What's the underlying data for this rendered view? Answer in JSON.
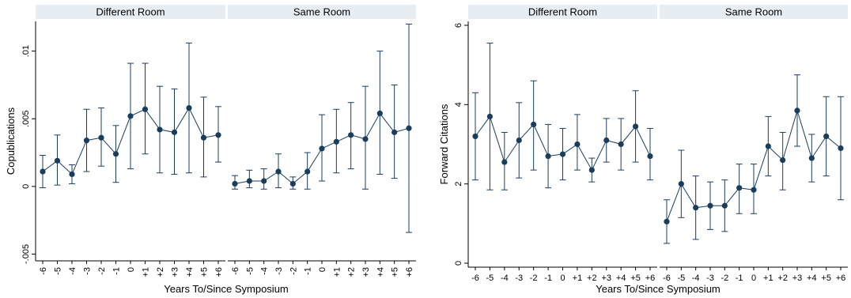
{
  "chart_data": [
    {
      "type": "line",
      "ylabel": "Copublications",
      "xlabel": "Years To/Since Symposium",
      "x": [
        "-6",
        "-5",
        "-4",
        "-3",
        "-2",
        "-1",
        "0",
        "+1",
        "+2",
        "+3",
        "+4",
        "+5",
        "+6"
      ],
      "yticks": [
        "-.005",
        "0",
        ".005",
        ".01"
      ],
      "ylim": [
        -0.0055,
        0.0122
      ],
      "panels": [
        {
          "title": "Different Room",
          "values": [
            0.0011,
            0.0019,
            0.0009,
            0.0034,
            0.0036,
            0.0024,
            0.0052,
            0.0057,
            0.0042,
            0.004,
            0.0058,
            0.0036,
            0.0038
          ],
          "ci_low": [
            -0.0001,
            0.0001,
            0.0002,
            0.0011,
            0.0015,
            0.0003,
            0.0013,
            0.0024,
            0.001,
            0.0009,
            0.001,
            0.0007,
            0.0018
          ],
          "ci_high": [
            0.0023,
            0.0038,
            0.0016,
            0.0057,
            0.0058,
            0.0045,
            0.0091,
            0.0091,
            0.0074,
            0.0072,
            0.0106,
            0.0066,
            0.0059
          ]
        },
        {
          "title": "Same Room",
          "values": [
            0.0002,
            0.0004,
            0.0004,
            0.0011,
            0.0002,
            0.0011,
            0.0028,
            0.0033,
            0.0038,
            0.0035,
            0.0054,
            0.004,
            0.0043
          ],
          "ci_low": [
            -0.0002,
            -0.0001,
            -0.0002,
            -0.0001,
            -0.0002,
            -0.0002,
            0.0004,
            0.001,
            0.0013,
            -0.0002,
            0.0009,
            0.0006,
            -0.0034
          ],
          "ci_high": [
            0.0008,
            0.0012,
            0.0013,
            0.0024,
            0.0007,
            0.0025,
            0.0053,
            0.0057,
            0.0062,
            0.0074,
            0.01,
            0.0075,
            0.012
          ]
        }
      ]
    },
    {
      "type": "line",
      "ylabel": "Forward Citations",
      "xlabel": "Years To/Since Symposium",
      "x": [
        "-6",
        "-5",
        "-4",
        "-3",
        "-2",
        "-1",
        "0",
        "+1",
        "+2",
        "+3",
        "+4",
        "+5",
        "+6"
      ],
      "yticks": [
        "0",
        "2",
        "4",
        "6"
      ],
      "ylim": [
        -0.1,
        6.1
      ],
      "panels": [
        {
          "title": "Different Room",
          "values": [
            3.2,
            3.7,
            2.55,
            3.1,
            3.5,
            2.7,
            2.75,
            3.0,
            2.35,
            3.1,
            3.0,
            3.45,
            2.7
          ],
          "ci_low": [
            2.1,
            1.85,
            1.85,
            2.15,
            2.35,
            1.9,
            2.1,
            2.35,
            2.05,
            2.55,
            2.35,
            2.55,
            2.1
          ],
          "ci_high": [
            4.3,
            5.55,
            3.3,
            4.05,
            4.6,
            3.5,
            3.4,
            3.75,
            2.65,
            3.65,
            3.65,
            4.35,
            3.4
          ]
        },
        {
          "title": "Same Room",
          "values": [
            1.05,
            2.0,
            1.4,
            1.45,
            1.45,
            1.9,
            1.85,
            2.95,
            2.6,
            3.85,
            2.65,
            3.2,
            2.9
          ],
          "ci_low": [
            0.5,
            1.15,
            0.6,
            0.85,
            0.8,
            1.25,
            1.25,
            2.2,
            1.85,
            2.95,
            2.05,
            2.2,
            1.6
          ],
          "ci_high": [
            1.6,
            2.85,
            2.2,
            2.05,
            2.1,
            2.5,
            2.5,
            3.7,
            3.3,
            4.75,
            3.25,
            4.2,
            4.2
          ]
        }
      ]
    }
  ]
}
